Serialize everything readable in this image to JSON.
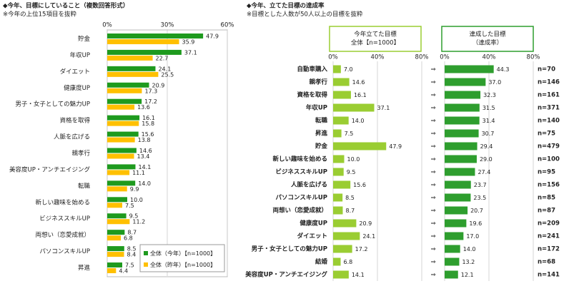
{
  "chart_data": [
    {
      "type": "bar",
      "orientation": "horizontal",
      "title": "◆今年、目標にしていること（複数回答形式）",
      "subtitle": "※今年の上位15項目を抜粋",
      "categories": [
        "貯金",
        "年収UP",
        "ダイエット",
        "健康度UP",
        "男子・女子としての魅力UP",
        "資格を取得",
        "人脈を広げる",
        "親孝行",
        "美容度UP・アンチエイジング",
        "転職",
        "新しい趣味を始める",
        "ビジネススキルUP",
        "両想い（恋愛成就）",
        "パソコンスキルUP",
        "昇進"
      ],
      "series": [
        {
          "name": "全体（今年）【n=1000】",
          "color": "#1e9a1e",
          "values": [
            47.9,
            37.1,
            24.1,
            20.9,
            17.2,
            16.1,
            15.6,
            14.6,
            14.1,
            14.0,
            10.0,
            9.5,
            8.7,
            8.5,
            7.5
          ],
          "value_labels": [
            "47.9",
            "37.1",
            "24.1",
            "20.9",
            "17.2",
            "16.1",
            "15.6",
            "14.6",
            "14.1",
            "14.0",
            "10.0",
            "9.5",
            "8.7",
            "8.5",
            "7.5"
          ]
        },
        {
          "name": "全体（昨年）【n=1000】",
          "color": "#ffc000",
          "values": [
            35.9,
            22.7,
            25.5,
            17.3,
            13.6,
            15.8,
            13.8,
            13.4,
            11.1,
            9.9,
            7.5,
            11.2,
            6.8,
            8.4,
            4.4
          ],
          "value_labels": [
            "35.9",
            "22.7",
            "25.5",
            "17.3",
            "13.6",
            "15.8",
            "13.8",
            "13.4",
            "11.1",
            "9.9",
            "7.5",
            "11.2",
            "6.8",
            "8.4",
            "4.4"
          ]
        }
      ],
      "xlim": [
        0,
        60
      ],
      "xticks": [
        {
          "value": 0,
          "label": "0%"
        },
        {
          "value": 30,
          "label": "30%"
        },
        {
          "value": 60,
          "label": "60%"
        }
      ],
      "grid": true,
      "legend": "lower right"
    },
    {
      "type": "bar",
      "orientation": "horizontal",
      "title": "◆今年、立てた目標の達成率",
      "subtitle": "※目標とした人数が50人以上の目標を抜粋",
      "panel_title": [
        "今年立てた目標",
        "全体【n=1000】"
      ],
      "categories": [
        "自動車購入",
        "親孝行",
        "資格を取得",
        "年収UP",
        "転職",
        "昇進",
        "貯金",
        "新しい趣味を始める",
        "ビジネススキルUP",
        "人脈を広げる",
        "パソコンスキルUP",
        "両想い（恋愛成就）",
        "健康度UP",
        "ダイエット",
        "男子・女子としての魅力UP",
        "結婚",
        "美容度UP・アンチエイジング"
      ],
      "series": [
        {
          "color": "#9acd32",
          "values": [
            7.0,
            14.6,
            16.1,
            37.1,
            14.0,
            7.5,
            47.9,
            10.0,
            9.5,
            15.6,
            8.5,
            8.7,
            20.9,
            24.1,
            17.2,
            6.8,
            14.1
          ],
          "value_labels": [
            "7.0",
            "14.6",
            "16.1",
            "37.1",
            "14.0",
            "7.5",
            "47.9",
            "10.0",
            "9.5",
            "15.6",
            "8.5",
            "8.7",
            "20.9",
            "24.1",
            "17.2",
            "6.8",
            "14.1"
          ]
        }
      ],
      "xlim": [
        0,
        80
      ],
      "xticks": [
        {
          "value": 0,
          "label": "0%"
        },
        {
          "value": 40,
          "label": "40%"
        },
        {
          "value": 80,
          "label": "80%"
        }
      ],
      "grid": true
    },
    {
      "type": "bar",
      "orientation": "horizontal",
      "panel_title": [
        "達成した目標",
        "（達成率）"
      ],
      "series": [
        {
          "color": "#2e9e2e",
          "values": [
            44.3,
            37.0,
            32.3,
            31.5,
            31.4,
            30.7,
            29.4,
            29.0,
            27.4,
            23.7,
            23.5,
            20.7,
            19.6,
            17.0,
            14.0,
            13.2,
            12.1
          ],
          "value_labels": [
            "44.3",
            "37.0",
            "32.3",
            "31.5",
            "31.4",
            "30.7",
            "29.4",
            "29.0",
            "27.4",
            "23.7",
            "23.5",
            "20.7",
            "19.6",
            "17.0",
            "14.0",
            "13.2",
            "12.1"
          ]
        }
      ],
      "n_labels": [
        "n=70",
        "n=146",
        "n=161",
        "n=371",
        "n=140",
        "n=75",
        "n=479",
        "n=100",
        "n=95",
        "n=156",
        "n=85",
        "n=87",
        "n=209",
        "n=241",
        "n=172",
        "n=68",
        "n=141"
      ],
      "xlim": [
        0,
        80
      ],
      "xticks": [
        {
          "value": 0,
          "label": "0%"
        },
        {
          "value": 40,
          "label": "40%"
        },
        {
          "value": 80,
          "label": "80%"
        }
      ],
      "grid": true
    }
  ]
}
